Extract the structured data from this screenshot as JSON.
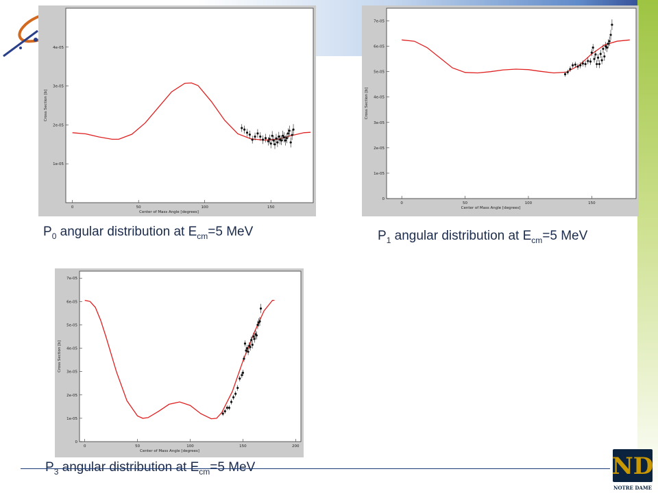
{
  "colors": {
    "curve": "#e02020",
    "points": "#111111",
    "panel_bg": "#cbcbcb",
    "plot_bg": "#ffffff",
    "caption": "#1b2b4b"
  },
  "captions": [
    {
      "p": "P",
      "sub": "0",
      "mid": " angular distribution at E",
      "sub2": "cm",
      "tail": "=5 MeV"
    },
    {
      "p": "P",
      "sub": "1",
      "mid": " angular distribution at E",
      "sub2": "cm",
      "tail": "=5 MeV"
    },
    {
      "p": "P",
      "sub": "3",
      "mid": " angular distribution at E",
      "sub2": "cm",
      "tail": "=5 MeV"
    }
  ],
  "logo": {
    "text": "NOTRE DAME",
    "icon": "notre-dame-monogram-icon"
  },
  "chart_data": [
    {
      "type": "line",
      "title": "",
      "xlabel": "Center of Mass Angle [degrees]",
      "ylabel": "Cross Section [b]",
      "xlim": [
        -5,
        182
      ],
      "ylim": [
        0,
        5e-05
      ],
      "xticks": [
        0,
        50,
        100,
        150
      ],
      "xtick_labels": [
        "0",
        "50",
        "100",
        "150"
      ],
      "yticks": [
        1e-05,
        2e-05,
        3e-05,
        4e-05
      ],
      "ytick_labels": [
        "1e-05",
        "2e-05",
        "3e-05",
        "4e-05"
      ],
      "grid": false,
      "series": [
        {
          "kind": "curve",
          "x": [
            0,
            10,
            20,
            30,
            35,
            45,
            55,
            65,
            75,
            85,
            90,
            95,
            105,
            115,
            125,
            135,
            145,
            155,
            165,
            175,
            180
          ],
          "y": [
            1.8e-05,
            1.77e-05,
            1.69e-05,
            1.63e-05,
            1.63e-05,
            1.76e-05,
            2.05e-05,
            2.45e-05,
            2.85e-05,
            3.07e-05,
            3.08e-05,
            3.01e-05,
            2.6e-05,
            2.12e-05,
            1.77e-05,
            1.64e-05,
            1.61e-05,
            1.63e-05,
            1.72e-05,
            1.8e-05,
            1.81e-05
          ]
        },
        {
          "kind": "points",
          "x": [
            128,
            130,
            132,
            134,
            136,
            138,
            140,
            142,
            144,
            146,
            148,
            149,
            150,
            151,
            152,
            153,
            154,
            155,
            156,
            157,
            158,
            159,
            160,
            161,
            162,
            163,
            164,
            165,
            166,
            167
          ],
          "y": [
            1.92e-05,
            1.88e-05,
            1.8e-05,
            1.75e-05,
            1.62e-05,
            1.7e-05,
            1.78e-05,
            1.7e-05,
            1.62e-05,
            1.66e-05,
            1.58e-05,
            1.64e-05,
            1.52e-05,
            1.72e-05,
            1.6e-05,
            1.5e-05,
            1.65e-05,
            1.55e-05,
            1.7e-05,
            1.62e-05,
            1.6e-05,
            1.72e-05,
            1.68e-05,
            1.6e-05,
            1.66e-05,
            1.78e-05,
            1.85e-05,
            1.55e-05,
            1.74e-05,
            1.88e-05
          ],
          "err": [
            1e-06,
            1e-06,
            1e-06,
            1e-06,
            1e-06,
            1e-06,
            1.1e-06,
            1.1e-06,
            1.1e-06,
            1.1e-06,
            1.1e-06,
            1.1e-06,
            1.2e-06,
            1.2e-06,
            1.2e-06,
            1.2e-06,
            1.2e-06,
            1.2e-06,
            1.2e-06,
            1.2e-06,
            1.2e-06,
            1.3e-06,
            1.3e-06,
            1.3e-06,
            1.3e-06,
            1.3e-06,
            1.3e-06,
            1.3e-06,
            1.3e-06,
            1.4e-06
          ]
        }
      ]
    },
    {
      "type": "line",
      "title": "",
      "xlabel": "Center of Mass Angle [degrees]",
      "ylabel": "Cross Section [b]",
      "xlim": [
        -12,
        185
      ],
      "ylim": [
        0,
        7.5e-05
      ],
      "xticks": [
        0,
        50,
        100,
        150
      ],
      "xtick_labels": [
        "0",
        "50",
        "100",
        "150"
      ],
      "yticks": [
        0,
        1e-05,
        2e-05,
        3e-05,
        4e-05,
        5e-05,
        6e-05,
        7e-05
      ],
      "ytick_labels": [
        "0",
        "1e-05",
        "2e-05",
        "3e-05",
        "4e-05",
        "5e-05",
        "6e-05",
        "7e-05"
      ],
      "grid": false,
      "series": [
        {
          "kind": "curve",
          "x": [
            0,
            10,
            20,
            30,
            40,
            50,
            60,
            70,
            80,
            90,
            100,
            110,
            120,
            130,
            140,
            150,
            160,
            170,
            180
          ],
          "y": [
            6.25e-05,
            6.2e-05,
            5.95e-05,
            5.55e-05,
            5.15e-05,
            4.97e-05,
            4.95e-05,
            5e-05,
            5.07e-05,
            5.1e-05,
            5.08e-05,
            5.01e-05,
            4.95e-05,
            4.98e-05,
            5.25e-05,
            5.7e-05,
            6.05e-05,
            6.2e-05,
            6.25e-05
          ]
        },
        {
          "kind": "points",
          "x": [
            129,
            131,
            133,
            135,
            137,
            139,
            141,
            143,
            145,
            147,
            149,
            150,
            151,
            152,
            153,
            154,
            155,
            156,
            157,
            158,
            159,
            160,
            161,
            162,
            163,
            164,
            165,
            166
          ],
          "y": [
            4.9e-05,
            4.98e-05,
            5.1e-05,
            5.25e-05,
            5.28e-05,
            5.2e-05,
            5.25e-05,
            5.32e-05,
            5.3e-05,
            5.42e-05,
            5.4e-05,
            5.75e-05,
            5.95e-05,
            5.5e-05,
            5.68e-05,
            5.3e-05,
            5.55e-05,
            5.3e-05,
            5.7e-05,
            5.45e-05,
            5.9e-05,
            5.6e-05,
            6e-05,
            5.95e-05,
            6.1e-05,
            6.2e-05,
            6.45e-05,
            6.85e-05
          ],
          "err": [
            1e-06,
            1e-06,
            1.1e-06,
            1.1e-06,
            1.1e-06,
            1.2e-06,
            1.2e-06,
            1.2e-06,
            1.3e-06,
            1.3e-06,
            1.3e-06,
            1.4e-06,
            1.4e-06,
            1.4e-06,
            1.5e-06,
            1.5e-06,
            1.5e-06,
            1.6e-06,
            1.6e-06,
            1.6e-06,
            1.7e-06,
            1.7e-06,
            1.7e-06,
            1.8e-06,
            1.8e-06,
            1.9e-06,
            2e-06,
            2.1e-06
          ]
        }
      ]
    },
    {
      "type": "line",
      "title": "",
      "xlabel": "Center of Mass Angle [degrees]",
      "ylabel": "Cross Section [b]",
      "xlim": [
        -5,
        205
      ],
      "ylim": [
        0,
        7.3e-05
      ],
      "xticks": [
        0,
        50,
        100,
        150,
        200
      ],
      "xtick_labels": [
        "0",
        "50",
        "100",
        "150",
        "200"
      ],
      "yticks": [
        0,
        1e-05,
        2e-05,
        3e-05,
        4e-05,
        5e-05,
        6e-05,
        7e-05
      ],
      "ytick_labels": [
        "0",
        "1e-05",
        "2e-05",
        "3e-05",
        "4e-05",
        "5e-05",
        "6e-05",
        "7e-05"
      ],
      "grid": false,
      "series": [
        {
          "kind": "curve",
          "x": [
            0,
            5,
            10,
            15,
            20,
            30,
            40,
            50,
            55,
            60,
            70,
            80,
            90,
            100,
            110,
            120,
            125,
            130,
            140,
            150,
            160,
            170,
            178,
            180
          ],
          "y": [
            6.05e-05,
            6e-05,
            5.75e-05,
            5.2e-05,
            4.5e-05,
            3e-05,
            1.75e-05,
            1.1e-05,
            1e-05,
            1.03e-05,
            1.3e-05,
            1.6e-05,
            1.7e-05,
            1.55e-05,
            1.2e-05,
            9.8e-06,
            1e-05,
            1.25e-05,
            2.15e-05,
            3.45e-05,
            4.6e-05,
            5.6e-05,
            6.05e-05,
            6.05e-05
          ]
        },
        {
          "kind": "points",
          "x": [
            131,
            133,
            135,
            137,
            139,
            141,
            143,
            145,
            147,
            149,
            150,
            151,
            152,
            153,
            154,
            155,
            156,
            157,
            158,
            159,
            160,
            161,
            162,
            163,
            164,
            165,
            166,
            167
          ],
          "y": [
            1.2e-05,
            1.3e-05,
            1.45e-05,
            1.45e-05,
            1.7e-05,
            1.9e-05,
            2.05e-05,
            2.3e-05,
            2.7e-05,
            2.85e-05,
            2.95e-05,
            3.55e-05,
            4.2e-05,
            3.9e-05,
            4e-05,
            3.85e-05,
            4.1e-05,
            4.05e-05,
            4.35e-05,
            4.15e-05,
            4.5e-05,
            4.4e-05,
            4.6e-05,
            4.55e-05,
            5e-05,
            5.1e-05,
            5.15e-05,
            5.7e-05
          ],
          "err": [
            1e-06,
            1e-06,
            1e-06,
            1e-06,
            1.1e-06,
            1.1e-06,
            1.1e-06,
            1.2e-06,
            1.2e-06,
            1.2e-06,
            1.3e-06,
            1.3e-06,
            1.3e-06,
            1.4e-06,
            1.4e-06,
            1.4e-06,
            1.5e-06,
            1.5e-06,
            1.5e-06,
            1.6e-06,
            1.6e-06,
            1.6e-06,
            1.7e-06,
            1.7e-06,
            1.8e-06,
            1.8e-06,
            1.9e-06,
            2e-06
          ]
        }
      ]
    }
  ]
}
